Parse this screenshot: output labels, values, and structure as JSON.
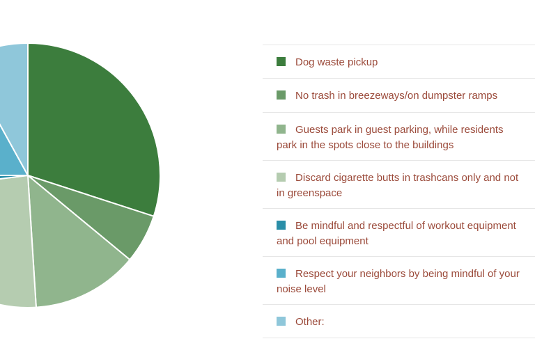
{
  "chart_data": {
    "type": "pie",
    "slices": [
      {
        "label": "Dog waste pickup",
        "value": 30,
        "color": "#3c7d3d"
      },
      {
        "label": "No trash in breezeways/on dumpster ramps",
        "value": 6,
        "color": "#6a9a68"
      },
      {
        "label": "Guests park in guest parking, while residents park in the spots close to the buildings",
        "value": 13,
        "color": "#90b58d"
      },
      {
        "label": "Discard cigarette butts in trashcans only and not in greenspace",
        "value": 24,
        "color": "#b5ccb0"
      },
      {
        "label": "Be mindful and respectful of workout equipment and pool equipment",
        "value": 2,
        "color": "#2a8ea8"
      },
      {
        "label": "Respect your neighbors by being mindful of your noise level",
        "value": 17,
        "color": "#5ab0cb"
      },
      {
        "label": "Other:",
        "value": 8,
        "color": "#8fc7da"
      }
    ]
  },
  "legend": {
    "items": [
      {
        "line1": "Dog waste pickup",
        "line2": ""
      },
      {
        "line1": "No trash in breezeways/on dumpster ramps",
        "line2": ""
      },
      {
        "line1": "Guests park in guest parking, while residents",
        "line2": "park in the spots close to the buildings"
      },
      {
        "line1": "Discard cigarette butts in trashcans only and not",
        "line2": "in greenspace"
      },
      {
        "line1": "Be mindful and respectful of workout equipment",
        "line2": "and pool equipment"
      },
      {
        "line1": "Respect your neighbors by being mindful of your",
        "line2": "noise level"
      },
      {
        "line1": "Other:",
        "line2": ""
      }
    ]
  }
}
